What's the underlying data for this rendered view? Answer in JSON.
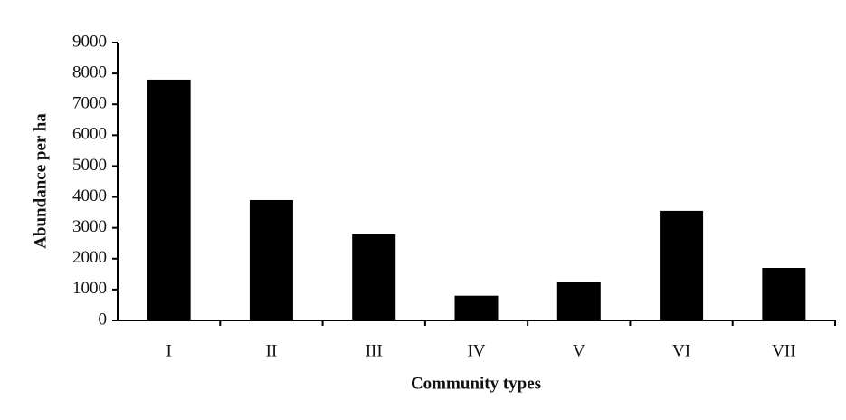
{
  "chart_data": {
    "type": "bar",
    "categories": [
      "I",
      "II",
      "III",
      "IV",
      "V",
      "VI",
      "VII"
    ],
    "values": [
      7800,
      3900,
      2800,
      800,
      1250,
      3550,
      1700
    ],
    "color": "#000000",
    "x_label": "Community types",
    "y_label": "Abundance per ha",
    "ylim": [
      0,
      9000
    ],
    "yticks": [
      0,
      1000,
      2000,
      3000,
      4000,
      5000,
      6000,
      7000,
      8000,
      9000
    ],
    "grid": false
  }
}
